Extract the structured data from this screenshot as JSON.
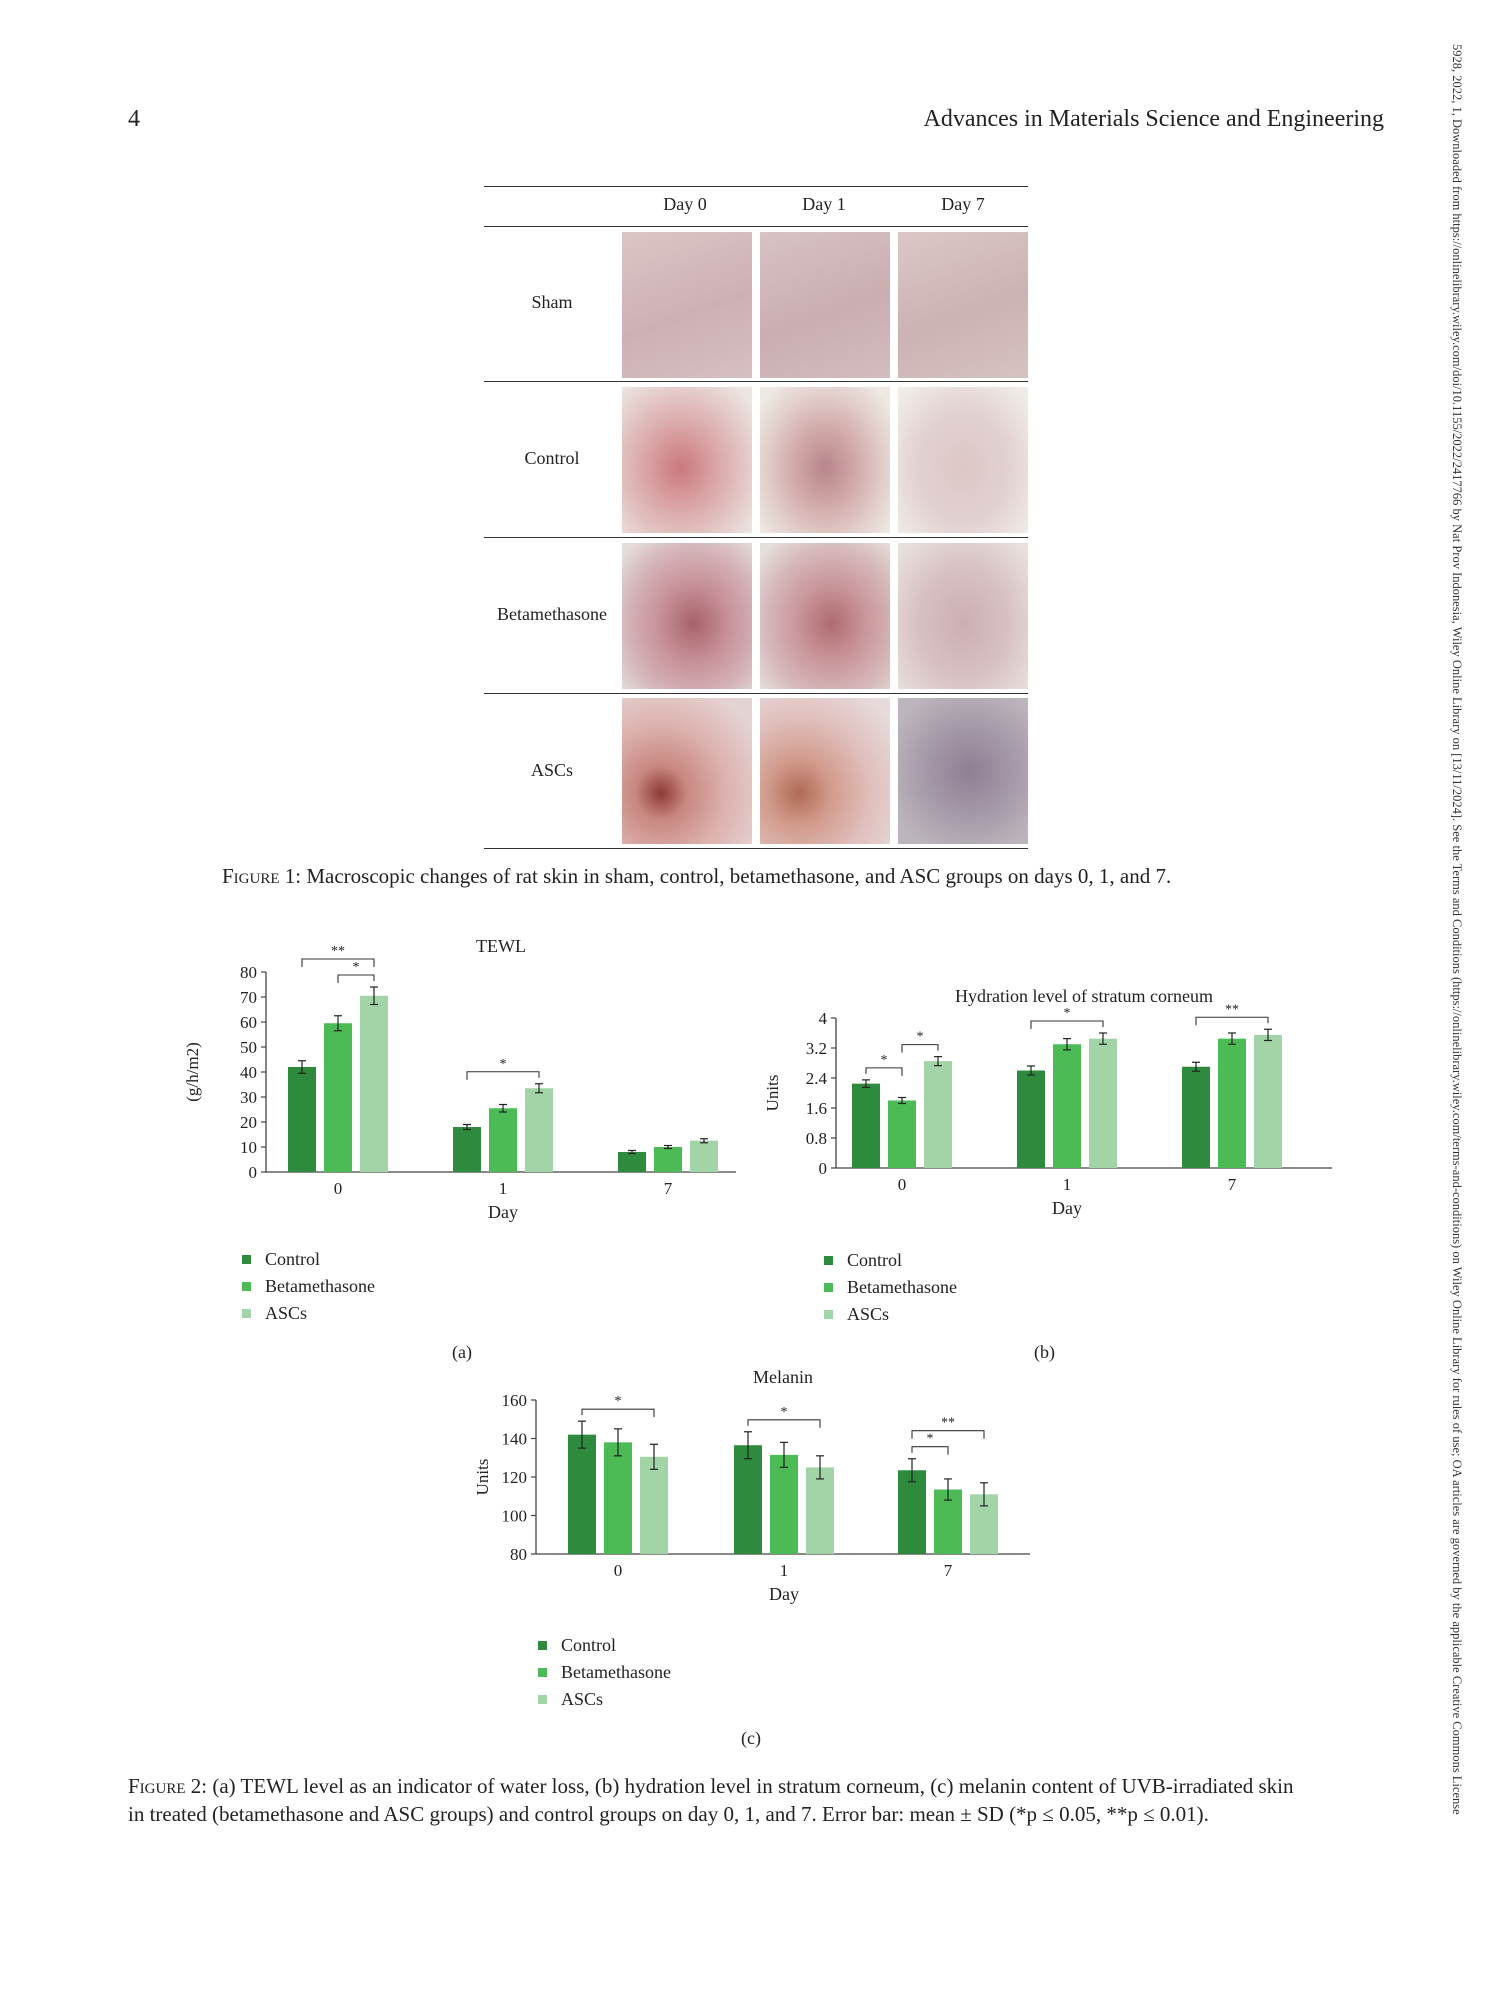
{
  "header": {
    "page_number": "4",
    "journal": "Advances in Materials Science and Engineering",
    "side_note": "5928, 2022, 1, Downloaded from https://onlinelibrary.wiley.com/doi/10.1155/2022/2417766 by Nat Prov Indonesia, Wiley Online Library on [13/11/2024]. See the Terms and Conditions (https://onlinelibrary.wiley.com/terms-and-conditions) on Wiley Online Library for rules of use; OA articles are governed by the applicable Creative Commons License"
  },
  "figure1": {
    "columns": [
      "Day 0",
      "Day 1",
      "Day 7"
    ],
    "rows": [
      "Sham",
      "Control",
      "Betamethasone",
      "ASCs"
    ],
    "caption_label": "Figure 1:",
    "caption_text": " Macroscopic changes of rat skin in sham, control, betamethasone, and ASC groups on days 0, 1, and 7."
  },
  "colors": {
    "control": "#2e8b3d",
    "betamethasone": "#4dbb55",
    "ascs": "#a3d4a7"
  },
  "legend": [
    "Control",
    "Betamethasone",
    "ASCs"
  ],
  "chart_data": [
    {
      "id": "a",
      "type": "bar",
      "title": "TEWL",
      "xlabel": "Day",
      "ylabel": "(g/h/m2)",
      "categories": [
        "0",
        "1",
        "7"
      ],
      "ylim": [
        0,
        80
      ],
      "yticks": [
        "0",
        "10",
        "20",
        "30",
        "40",
        "50",
        "60",
        "70",
        "80"
      ],
      "series": [
        {
          "name": "Control",
          "values": [
            42,
            18,
            8
          ],
          "errors": [
            2.5,
            1.0,
            0.6
          ]
        },
        {
          "name": "Betamethasone",
          "values": [
            59.5,
            25.5,
            10
          ],
          "errors": [
            3.0,
            1.5,
            0.6
          ]
        },
        {
          "name": "ASCs",
          "values": [
            70.5,
            33.5,
            12.5
          ],
          "errors": [
            3.5,
            1.8,
            0.8
          ]
        }
      ],
      "brackets": [
        {
          "cat": 0,
          "from": 0,
          "to": 2,
          "label": "**"
        },
        {
          "cat": 0,
          "from": 1,
          "to": 2,
          "label": "*"
        },
        {
          "cat": 1,
          "from": 0,
          "to": 2,
          "label": "*"
        }
      ],
      "panel_label": "(a)"
    },
    {
      "id": "b",
      "type": "bar",
      "title": "Hydration level of stratum corneum",
      "xlabel": "Day",
      "ylabel": "Units",
      "categories": [
        "0",
        "1",
        "7"
      ],
      "ylim": [
        0,
        4
      ],
      "yticks": [
        "0",
        "0.8",
        "1.6",
        "2.4",
        "3.2",
        "4"
      ],
      "series": [
        {
          "name": "Control",
          "values": [
            2.25,
            2.6,
            2.7
          ],
          "errors": [
            0.1,
            0.12,
            0.12
          ]
        },
        {
          "name": "Betamethasone",
          "values": [
            1.8,
            3.3,
            3.45
          ],
          "errors": [
            0.08,
            0.15,
            0.15
          ]
        },
        {
          "name": "ASCs",
          "values": [
            2.85,
            3.45,
            3.55
          ],
          "errors": [
            0.12,
            0.15,
            0.15
          ]
        }
      ],
      "brackets": [
        {
          "cat": 0,
          "from": 0,
          "to": 1,
          "label": "*"
        },
        {
          "cat": 0,
          "from": 1,
          "to": 2,
          "label": "*"
        },
        {
          "cat": 1,
          "from": 0,
          "to": 2,
          "label": "*"
        },
        {
          "cat": 2,
          "from": 0,
          "to": 2,
          "label": "**"
        }
      ],
      "panel_label": "(b)"
    },
    {
      "id": "c",
      "type": "bar",
      "title": "Melanin",
      "xlabel": "Day",
      "ylabel": "Units",
      "categories": [
        "0",
        "1",
        "7"
      ],
      "ylim": [
        80,
        160
      ],
      "yticks": [
        "80",
        "100",
        "120",
        "140",
        "160"
      ],
      "series": [
        {
          "name": "Control",
          "values": [
            142,
            136.5,
            123.5
          ],
          "errors": [
            7,
            7,
            6
          ]
        },
        {
          "name": "Betamethasone",
          "values": [
            138,
            131.5,
            113.5
          ],
          "errors": [
            7,
            6.5,
            5.5
          ]
        },
        {
          "name": "ASCs",
          "values": [
            130.5,
            125,
            111
          ],
          "errors": [
            6.5,
            6,
            6
          ]
        }
      ],
      "brackets": [
        {
          "cat": 0,
          "from": 0,
          "to": 2,
          "label": "*"
        },
        {
          "cat": 1,
          "from": 0,
          "to": 2,
          "label": "*"
        },
        {
          "cat": 2,
          "from": 0,
          "to": 1,
          "label": "*"
        },
        {
          "cat": 2,
          "from": 0,
          "to": 2,
          "label": "**"
        }
      ],
      "panel_label": "(c)"
    }
  ],
  "figure2": {
    "caption_label": "Figure 2:",
    "caption_line1": " (a) TEWL level as an indicator of water loss, (b) hydration level in stratum corneum, (c) melanin content of UVB-irradiated skin",
    "caption_line2": "in treated (betamethasone and ASC groups) and control groups on day 0, 1, and 7. Error bar: mean ± SD (*p ≤ 0.05, **p ≤ 0.01)."
  }
}
